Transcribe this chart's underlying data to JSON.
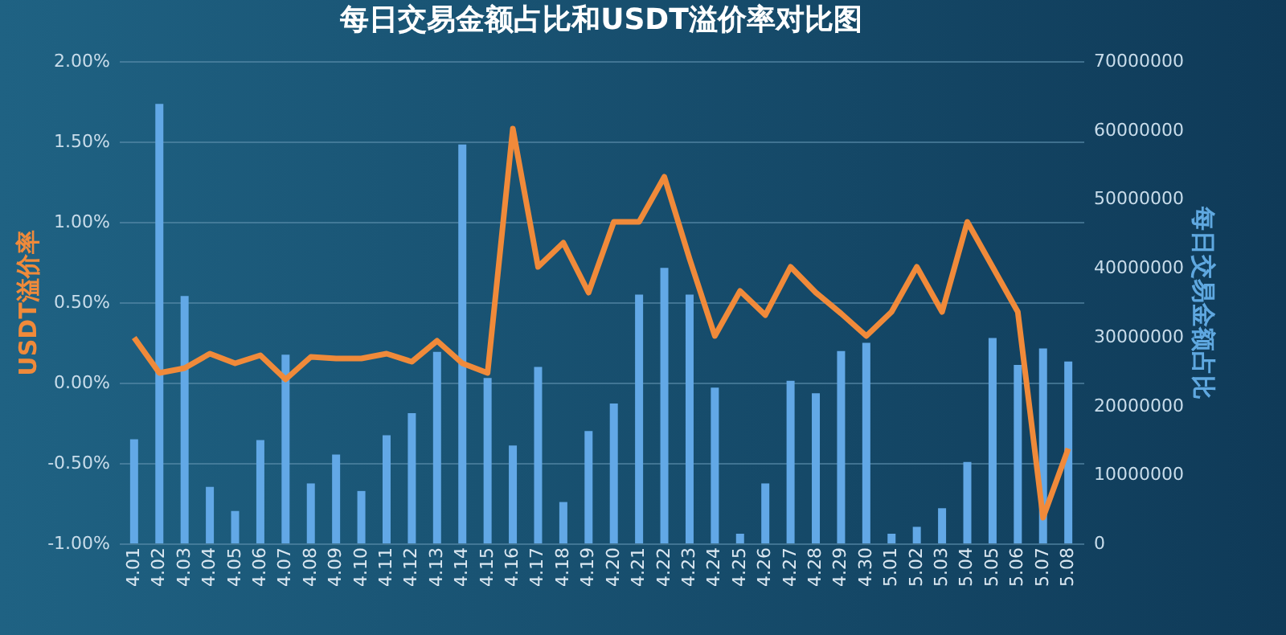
{
  "chart_data": {
    "type": "bar",
    "title": "每日交易金额占比和USDT溢价率对比图",
    "ylabel": "USDT溢价率",
    "y2label": "每日交易金额占比",
    "categories": [
      "4.01",
      "4.02",
      "4.03",
      "4.04",
      "4.05",
      "4.06",
      "4.07",
      "4.08",
      "4.09",
      "4.10",
      "4.11",
      "4.12",
      "4.13",
      "4.14",
      "4.15",
      "4.16",
      "4.17",
      "4.18",
      "4.19",
      "4.20",
      "4.21",
      "4.22",
      "4.23",
      "4.24",
      "4.25",
      "4.26",
      "4.27",
      "4.28",
      "4.29",
      "4.30",
      "5.01",
      "5.02",
      "5.03",
      "5.04",
      "5.05",
      "5.06",
      "5.07",
      "5.08"
    ],
    "series": [
      {
        "axis": "y2",
        "color": "#62a8e6",
        "values": [
          15100000,
          63800000,
          35900000,
          8200000,
          4700000,
          15000000,
          27400000,
          8700000,
          12900000,
          7600000,
          15700000,
          18900000,
          27800000,
          57900000,
          24000000,
          14200000,
          25600000,
          6000000,
          16300000,
          20300000,
          36100000,
          40000000,
          36100000,
          22600000,
          1400000,
          8700000,
          23600000,
          21800000,
          27900000,
          29100000,
          1400000,
          2400000,
          5100000,
          11800000,
          29800000,
          25900000,
          28300000,
          26400000
        ]
      },
      {
        "type": "line",
        "color": "#f08a3a",
        "values": [
          0.28,
          0.06,
          0.09,
          0.18,
          0.12,
          0.17,
          0.02,
          0.16,
          0.15,
          0.15,
          0.18,
          0.13,
          0.26,
          0.12,
          0.06,
          1.58,
          0.72,
          0.87,
          0.56,
          1.0,
          1.0,
          1.28,
          0.77,
          0.29,
          0.57,
          0.42,
          0.72,
          0.56,
          0.43,
          0.29,
          0.44,
          0.72,
          0.44,
          1.0,
          0.72,
          0.44,
          -0.84,
          -0.41
        ]
      }
    ],
    "ylim": [
      -1,
      2
    ],
    "yticks": [
      {
        "value": -1,
        "label": "-1.00%"
      },
      {
        "value": -0.5,
        "label": "-0.50%"
      },
      {
        "value": 0,
        "label": "0.00%"
      },
      {
        "value": 0.5,
        "label": "0.50%"
      },
      {
        "value": 1,
        "label": "1.00%"
      },
      {
        "value": 1.5,
        "label": "1.50%"
      },
      {
        "value": 2,
        "label": "2.00%"
      }
    ],
    "y2lim": [
      0,
      70000000
    ],
    "y2ticks": [
      0,
      10000000,
      20000000,
      30000000,
      40000000,
      50000000,
      60000000,
      70000000
    ],
    "grid": "y"
  }
}
